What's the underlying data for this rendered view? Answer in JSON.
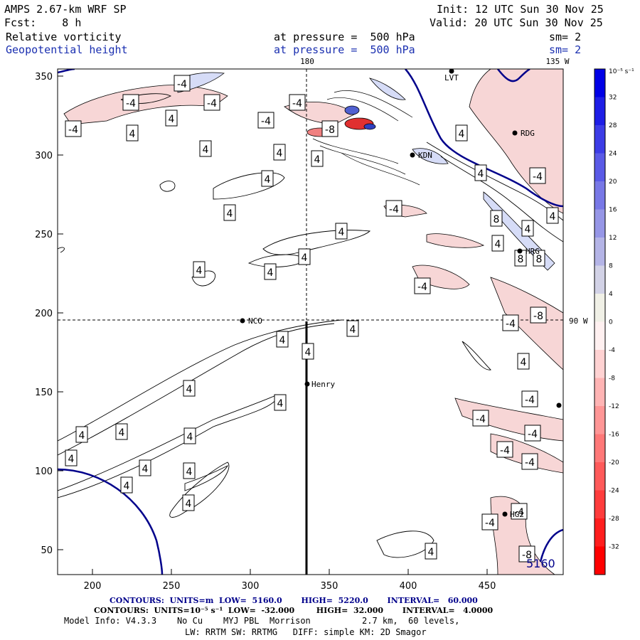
{
  "header": {
    "model": "AMPS 2.67-km WRF SP",
    "init": "Init: 12 UTC Sun 30 Nov 25",
    "fcst": "Fcst:    8 h",
    "valid": "Valid: 20 UTC Sun 30 Nov 25",
    "field1": "Relative vorticity",
    "field1_level": "at pressure =  500 hPa",
    "field1_sm": "sm= 2",
    "field2": "Geopotential height",
    "field2_level": "at pressure =  500 hPa",
    "field2_sm": "sm= 2"
  },
  "map": {
    "x_ticks": [
      "200",
      "250",
      "300",
      "350",
      "400",
      "450"
    ],
    "y_ticks": [
      "350",
      "300",
      "250",
      "200",
      "150",
      "100",
      "50"
    ],
    "lon_top_180": "180",
    "lon_top_135": "135 W",
    "lat_right": "90 W",
    "height_contour_label": "5160",
    "stations": [
      {
        "name": "LVT",
        "id": "lvt"
      },
      {
        "name": "RDG",
        "id": "rdg"
      },
      {
        "name": "KDN",
        "id": "kdn"
      },
      {
        "name": "HRG",
        "id": "hrg"
      },
      {
        "name": "NCO",
        "id": "nco"
      },
      {
        "name": "Henry",
        "id": "henry"
      },
      {
        "name": "HG2",
        "id": "hg2"
      }
    ]
  },
  "colorbar": {
    "unit": "10⁻⁵ s⁻¹",
    "labels": [
      "32",
      "28",
      "24",
      "20",
      "16",
      "12",
      "8",
      "4",
      "0",
      "-4",
      "-8",
      "-12",
      "-16",
      "-20",
      "-24",
      "-28",
      "-32"
    ]
  },
  "footer": {
    "height_contours": "CONTOURS:  UNITS=m  LOW=  5160.0       HIGH=  5220.0       INTERVAL=   60.000",
    "vort_contours": "CONTOURS:  UNITS=10⁻⁵ s⁻¹  LOW=  -32.000        HIGH=  32.000       INTERVAL=   4.0000",
    "model_info": "Model Info: V4.3.3    No Cu    MYJ PBL  Morrison          2.7 km,  60 levels,",
    "physics": "LW: RRTM SW: RRTMG   DIFF: simple KM: 2D Smagor"
  },
  "colors": {
    "positive_max": "#0000e6",
    "negative_max": "#ff0000",
    "height_contour": "#00008b"
  }
}
